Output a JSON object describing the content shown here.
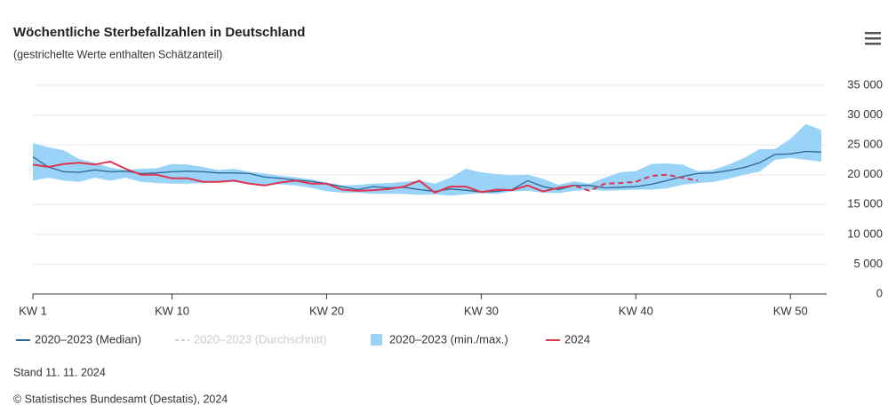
{
  "chart_data": {
    "type": "line",
    "title": "Wöchentliche Sterbefallzahlen in Deutschland",
    "subtitle": "(gestrichelte Werte enthalten Schätzanteil)",
    "x": [
      1,
      2,
      3,
      4,
      5,
      6,
      7,
      8,
      9,
      10,
      11,
      12,
      13,
      14,
      15,
      16,
      17,
      18,
      19,
      20,
      21,
      22,
      23,
      24,
      25,
      26,
      27,
      28,
      29,
      30,
      31,
      32,
      33,
      34,
      35,
      36,
      37,
      38,
      39,
      40,
      41,
      42,
      43,
      44,
      45,
      46,
      47,
      48,
      49,
      50,
      51,
      52
    ],
    "xlim": [
      1,
      52
    ],
    "xticks": [
      {
        "value": 1,
        "label": "KW 1"
      },
      {
        "value": 10,
        "label": "KW 10"
      },
      {
        "value": 20,
        "label": "KW 20"
      },
      {
        "value": 30,
        "label": "KW 30"
      },
      {
        "value": 40,
        "label": "KW 40"
      },
      {
        "value": 50,
        "label": "KW 50"
      }
    ],
    "ylim": [
      0,
      35000
    ],
    "yticks": [
      0,
      {
        "value": 5000,
        "label": "5 000"
      },
      {
        "value": 10000,
        "label": "10 000"
      },
      {
        "value": 15000,
        "label": "15 000"
      },
      {
        "value": 20000,
        "label": "20 000"
      },
      {
        "value": 25000,
        "label": "25 000"
      },
      {
        "value": 30000,
        "label": "30 000"
      },
      {
        "value": 35000,
        "label": "35 000"
      }
    ],
    "grid": true,
    "series": [
      {
        "name": "2020–2023 (Median)",
        "color": "#2f6690",
        "kind": "line",
        "values": [
          23000,
          21300,
          20500,
          20400,
          20800,
          20500,
          20600,
          20200,
          20300,
          20500,
          20600,
          20500,
          20300,
          20300,
          20200,
          19600,
          19400,
          19100,
          18900,
          18500,
          18000,
          17500,
          18000,
          17800,
          17900,
          17500,
          17200,
          17600,
          17400,
          17100,
          17200,
          17500,
          19000,
          18000,
          17500,
          18200,
          18200,
          17800,
          17900,
          18000,
          18400,
          19000,
          19700,
          20200,
          20300,
          20700,
          21200,
          22000,
          23400,
          23500,
          23900,
          23800
        ]
      },
      {
        "name": "2020–2023 (Durchschnitt)",
        "color": "#cccccc",
        "kind": "line",
        "visible": false
      },
      {
        "name": "2020–2023 (min./max.)",
        "color": "#99d3f7",
        "kind": "band",
        "low": [
          19000,
          19500,
          19000,
          18800,
          19500,
          19000,
          19500,
          18800,
          18600,
          18500,
          18500,
          18600,
          18700,
          18800,
          18500,
          18300,
          18400,
          18200,
          17800,
          17200,
          17000,
          17000,
          16800,
          16800,
          16800,
          16600,
          16700,
          16500,
          16700,
          16900,
          16800,
          17200,
          17300,
          17000,
          16900,
          17300,
          17500,
          17300,
          17400,
          17500,
          17500,
          17700,
          18300,
          18600,
          18800,
          19300,
          20000,
          20500,
          22500,
          22800,
          22500,
          22200
        ],
        "high": [
          25300,
          24600,
          24100,
          22600,
          22000,
          21200,
          20800,
          21000,
          21100,
          21800,
          21700,
          21300,
          20800,
          21000,
          20500,
          20200,
          19800,
          19600,
          19200,
          18700,
          18200,
          18300,
          18500,
          18600,
          18800,
          19000,
          18500,
          19500,
          21000,
          20400,
          20100,
          19900,
          20000,
          19300,
          18300,
          18900,
          18500,
          19500,
          20400,
          20600,
          21800,
          21900,
          21700,
          20600,
          20800,
          21700,
          22800,
          24300,
          24300,
          26000,
          28500,
          27500
        ]
      },
      {
        "name": "2024",
        "color": "#e0334f",
        "kind": "line",
        "dashed_from": 36,
        "values": [
          21700,
          21300,
          21800,
          22000,
          21700,
          22200,
          21000,
          20000,
          20000,
          19400,
          19400,
          18800,
          18800,
          19000,
          18500,
          18200,
          18700,
          19000,
          18500,
          18500,
          17500,
          17300,
          17400,
          17600,
          18000,
          19000,
          17000,
          18000,
          18000,
          17100,
          17500,
          17400,
          18200,
          17200,
          17800,
          18200,
          17300,
          18500,
          18600,
          18800,
          19800,
          20000,
          19500,
          19000,
          null,
          null,
          null,
          null,
          null,
          null,
          null,
          null
        ]
      }
    ],
    "notes": [
      "Stand 11. 11. 2024",
      "© Statistisches Bundesamt (Destatis), 2024"
    ]
  }
}
